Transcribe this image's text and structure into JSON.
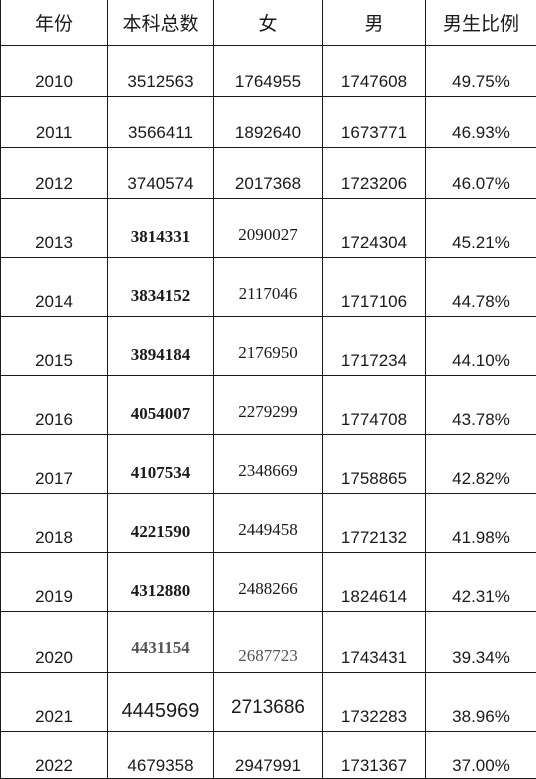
{
  "headers": [
    "年份",
    "本科总数",
    "女",
    "男",
    "男生比例"
  ],
  "rows": [
    [
      "2010",
      "3512563",
      "1764955",
      "1747608",
      "49.75%"
    ],
    [
      "2011",
      "3566411",
      "1892640",
      "1673771",
      "46.93%"
    ],
    [
      "2012",
      "3740574",
      "2017368",
      "1723206",
      "46.07%"
    ],
    [
      "2013",
      "3814331",
      "2090027",
      "1724304",
      "45.21%"
    ],
    [
      "2014",
      "3834152",
      "2117046",
      "1717106",
      "44.78%"
    ],
    [
      "2015",
      "3894184",
      "2176950",
      "1717234",
      "44.10%"
    ],
    [
      "2016",
      "4054007",
      "2279299",
      "1774708",
      "43.78%"
    ],
    [
      "2017",
      "4107534",
      "2348669",
      "1758865",
      "42.82%"
    ],
    [
      "2018",
      "4221590",
      "2449458",
      "1772132",
      "41.98%"
    ],
    [
      "2019",
      "4312880",
      "2488266",
      "1824614",
      "42.31%"
    ],
    [
      "2020",
      "4431154",
      "2687723",
      "1743431",
      "39.34%"
    ],
    [
      "2021",
      "4445969",
      "2713686",
      "1732283",
      "38.96%"
    ],
    [
      "2022",
      "4679358",
      "2947991",
      "1731367",
      "37.00%"
    ]
  ]
}
